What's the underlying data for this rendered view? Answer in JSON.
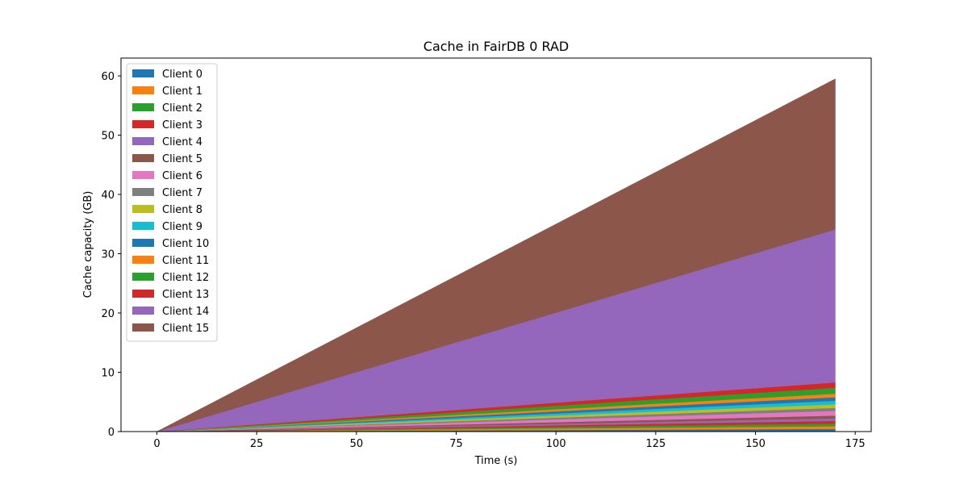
{
  "chart_data": {
    "type": "area",
    "stacked": true,
    "title": "Cache in  FairDB 0 RAD",
    "xlabel": "Time (s)",
    "ylabel": "Cache capacity (GB)",
    "xlim": [
      -9,
      179
    ],
    "ylim": [
      0,
      63
    ],
    "xticks": [
      0,
      25,
      50,
      75,
      100,
      125,
      150,
      175
    ],
    "yticks": [
      0,
      10,
      20,
      30,
      40,
      50,
      60
    ],
    "grid": false,
    "legend_position": "upper-left",
    "x": [
      0,
      170
    ],
    "series": [
      {
        "name": "Client 0",
        "color": "#1f77b4",
        "values": [
          0,
          0.45
        ]
      },
      {
        "name": "Client 1",
        "color": "#ff7f0e",
        "values": [
          0,
          0.45
        ]
      },
      {
        "name": "Client 2",
        "color": "#2ca02c",
        "values": [
          0,
          0.45
        ]
      },
      {
        "name": "Client 3",
        "color": "#d62728",
        "values": [
          0,
          0.45
        ]
      },
      {
        "name": "Client 4",
        "color": "#9467bd",
        "values": [
          0,
          0.45
        ]
      },
      {
        "name": "Client 5",
        "color": "#8c564b",
        "values": [
          0,
          0.45
        ]
      },
      {
        "name": "Client 6",
        "color": "#e377c2",
        "values": [
          0,
          0.8
        ]
      },
      {
        "name": "Client 7",
        "color": "#7f7f7f",
        "values": [
          0,
          0.5
        ]
      },
      {
        "name": "Client 8",
        "color": "#bcbd22",
        "values": [
          0,
          0.6
        ]
      },
      {
        "name": "Client 9",
        "color": "#17becf",
        "values": [
          0,
          0.6
        ]
      },
      {
        "name": "Client 10",
        "color": "#1f77b4",
        "values": [
          0,
          0.6
        ]
      },
      {
        "name": "Client 11",
        "color": "#ff7f0e",
        "values": [
          0,
          0.6
        ]
      },
      {
        "name": "Client 12",
        "color": "#2ca02c",
        "values": [
          0,
          1.0
        ]
      },
      {
        "name": "Client 13",
        "color": "#d62728",
        "values": [
          0,
          0.9
        ]
      },
      {
        "name": "Client 14",
        "color": "#9467bd",
        "values": [
          0,
          25.8
        ]
      },
      {
        "name": "Client 15",
        "color": "#8c564b",
        "values": [
          0,
          25.4
        ]
      }
    ]
  }
}
